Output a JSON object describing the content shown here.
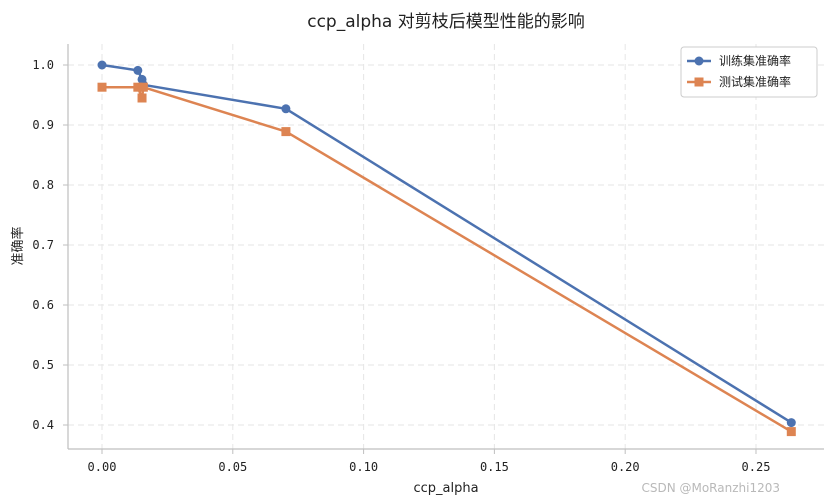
{
  "chart_data": {
    "type": "line",
    "title": "ccp_alpha 对剪枝后模型性能的影响",
    "xlabel": "ccp_alpha",
    "ylabel": "准确率",
    "xlim": [
      -0.013,
      0.276
    ],
    "ylim": [
      0.36,
      1.035
    ],
    "xticks": [
      0.0,
      0.05,
      0.1,
      0.15,
      0.2,
      0.25
    ],
    "xtick_labels": [
      "0.00",
      "0.05",
      "0.10",
      "0.15",
      "0.20",
      "0.25"
    ],
    "yticks": [
      0.4,
      0.5,
      0.6,
      0.7,
      0.8,
      0.9,
      1.0
    ],
    "ytick_labels": [
      "0.4",
      "0.5",
      "0.6",
      "0.7",
      "0.8",
      "0.9",
      "1.0"
    ],
    "grid": true,
    "legend_position": "top-right",
    "series": [
      {
        "name": "训练集准确率",
        "marker": "circle",
        "color": "#4c72b0",
        "x": [
          0.0,
          0.0137,
          0.0153,
          0.0158,
          0.0703,
          0.2635
        ],
        "y": [
          1.0,
          0.991,
          0.976,
          0.967,
          0.927,
          0.404
        ]
      },
      {
        "name": "测试集准确率",
        "marker": "square",
        "color": "#dd8452",
        "x": [
          0.0,
          0.0137,
          0.0153,
          0.0158,
          0.0703,
          0.2635
        ],
        "y": [
          0.963,
          0.963,
          0.945,
          0.963,
          0.889,
          0.389
        ]
      }
    ]
  },
  "watermark": "CSDN @MoRanzhi1203"
}
